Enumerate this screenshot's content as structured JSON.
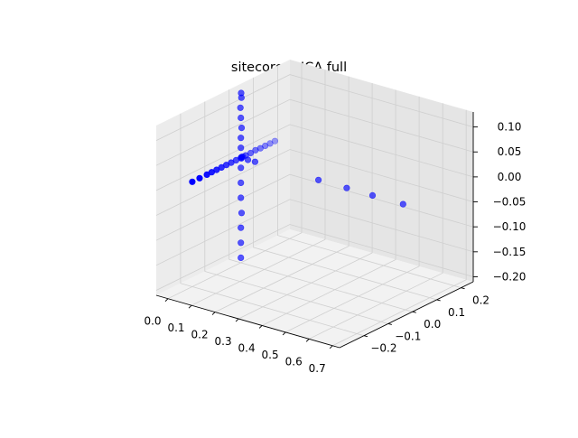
{
  "chart_data": {
    "type": "scatter",
    "title": "sitecore: - ICA full",
    "colors": {
      "marker": "#0000ff",
      "pane_left": "#ececec",
      "pane_right": "#e5e5e5",
      "pane_floor": "#f2f2f2"
    },
    "x_axis": {
      "range": [
        -0.05,
        0.73
      ],
      "ticks": [
        "0.0",
        "0.1",
        "0.2",
        "0.3",
        "0.4",
        "0.5",
        "0.6",
        "0.7"
      ]
    },
    "y_axis": {
      "range": [
        -0.3,
        0.25
      ],
      "ticks": [
        "−0.2",
        "−0.1",
        "0.0",
        "0.1",
        "0.2"
      ]
    },
    "z_axis": {
      "range": [
        -0.21,
        0.13
      ],
      "ticks": [
        "−0.20",
        "−0.15",
        "−0.10",
        "−0.05",
        "0.00",
        "0.05",
        "0.10"
      ]
    },
    "grid": true,
    "points": [
      {
        "x": 0.0,
        "y": 0.0,
        "z": 0.0
      },
      {
        "x": 0.005,
        "y": 0.003,
        "z": 0.002
      },
      {
        "x": -0.004,
        "y": 0.006,
        "z": -0.003
      },
      {
        "x": 0.008,
        "y": -0.005,
        "z": 0.004
      },
      {
        "x": 0.0,
        "y": 0.0,
        "z": 0.02
      },
      {
        "x": 0.0,
        "y": 0.0,
        "z": 0.04
      },
      {
        "x": 0.002,
        "y": 0.001,
        "z": 0.06
      },
      {
        "x": 0.0,
        "y": 0.0,
        "z": 0.08
      },
      {
        "x": -0.002,
        "y": 0.0,
        "z": 0.1
      },
      {
        "x": 0.0,
        "y": 0.002,
        "z": 0.12
      },
      {
        "x": 0.001,
        "y": 0.0,
        "z": 0.13
      },
      {
        "x": 0.0,
        "y": 0.0,
        "z": -0.02
      },
      {
        "x": 0.0,
        "y": 0.0,
        "z": -0.05
      },
      {
        "x": 0.0,
        "y": 0.0,
        "z": -0.08
      },
      {
        "x": 0.003,
        "y": 0.0,
        "z": -0.11
      },
      {
        "x": 0.0,
        "y": 0.0,
        "z": -0.14
      },
      {
        "x": 0.0,
        "y": 0.0,
        "z": -0.17
      },
      {
        "x": 0.0,
        "y": 0.0,
        "z": -0.2
      },
      {
        "x": 0.0,
        "y": 0.02,
        "z": 0.0
      },
      {
        "x": 0.0,
        "y": 0.04,
        "z": 0.0
      },
      {
        "x": 0.0,
        "y": 0.06,
        "z": 0.001
      },
      {
        "x": 0.0,
        "y": 0.08,
        "z": 0.0
      },
      {
        "x": 0.0,
        "y": 0.1,
        "z": 0.0
      },
      {
        "x": 0.0,
        "y": 0.12,
        "z": 0.0
      },
      {
        "x": 0.0,
        "y": 0.14,
        "z": 0.0
      },
      {
        "x": 0.0,
        "y": -0.02,
        "z": 0.0
      },
      {
        "x": 0.0,
        "y": -0.04,
        "z": 0.0
      },
      {
        "x": 0.0,
        "y": -0.06,
        "z": 0.0
      },
      {
        "x": 0.0,
        "y": -0.08,
        "z": 0.0
      },
      {
        "x": 0.0,
        "y": -0.1,
        "z": 0.0
      },
      {
        "x": 0.0,
        "y": -0.12,
        "z": 0.0
      },
      {
        "x": 0.0,
        "y": -0.14,
        "z": 0.0
      },
      {
        "x": 0.0,
        "y": -0.17,
        "z": 0.0
      },
      {
        "x": 0.0,
        "y": -0.2,
        "z": 0.0
      },
      {
        "x": 0.03,
        "y": 0.0,
        "z": 0.0
      },
      {
        "x": 0.06,
        "y": 0.0,
        "z": 0.0
      },
      {
        "x": 0.33,
        "y": 0.0,
        "z": 0.0
      },
      {
        "x": 0.45,
        "y": 0.0,
        "z": 0.0
      },
      {
        "x": 0.56,
        "y": 0.0,
        "z": 0.0
      },
      {
        "x": 0.69,
        "y": 0.0,
        "z": 0.0
      }
    ]
  }
}
